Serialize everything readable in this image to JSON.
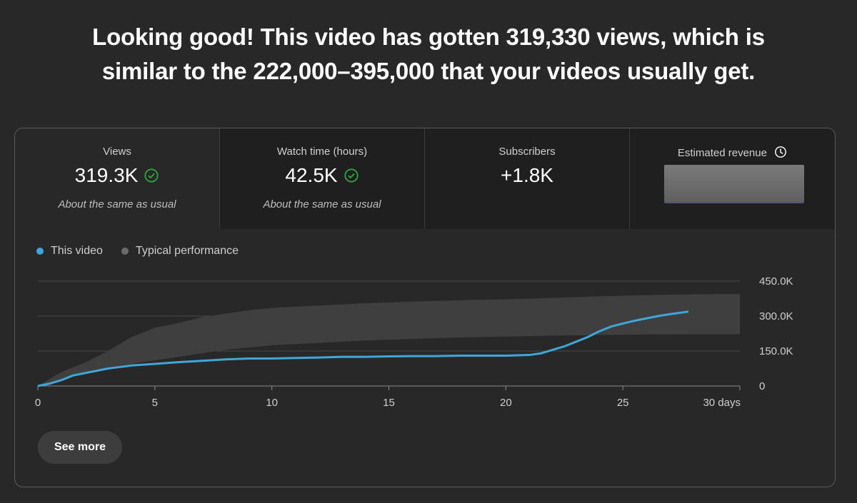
{
  "headline": {
    "line1": "Looking good! This video has gotten 319,330 views, which is",
    "line2": "similar to the 222,000–395,000 that your videos usually get."
  },
  "metrics": [
    {
      "title": "Views",
      "value": "319.3K",
      "note": "About the same as usual",
      "icon": "check-circle-icon"
    },
    {
      "title": "Watch time (hours)",
      "value": "42.5K",
      "note": "About the same as usual",
      "icon": "check-circle-icon"
    },
    {
      "title": "Subscribers",
      "value": "+1.8K",
      "note": ""
    },
    {
      "title": "Estimated revenue",
      "value": "",
      "icon": "clock-icon",
      "value_hidden": true
    }
  ],
  "legend": [
    {
      "label": "This video",
      "color": "#3ea6d8"
    },
    {
      "label": "Typical performance",
      "color": "#6b6b6b"
    }
  ],
  "chart_data": {
    "type": "line",
    "xlabel": "30 days",
    "x_ticks": [
      "0",
      "5",
      "10",
      "15",
      "20",
      "25",
      "30 days"
    ],
    "xlim": [
      0,
      30
    ],
    "y_ticks": [
      "0",
      "150.0K",
      "300.0K",
      "450.0K"
    ],
    "ylim": [
      0,
      450000
    ],
    "grid": true,
    "series": [
      {
        "name": "This video",
        "color": "#3ea6d8",
        "x": [
          0,
          0.5,
          1,
          1.5,
          2,
          3,
          4,
          5,
          6,
          7,
          8,
          9,
          10,
          11,
          12,
          13,
          14,
          15,
          16,
          17,
          18,
          19,
          20,
          21,
          21.5,
          22,
          22.5,
          23,
          23.5,
          24,
          24.5,
          25,
          25.5,
          26,
          26.5,
          27,
          27.5,
          27.8
        ],
        "y": [
          0,
          10000,
          25000,
          45000,
          55000,
          75000,
          88000,
          95000,
          102000,
          108000,
          114000,
          118000,
          118000,
          120000,
          122000,
          125000,
          125000,
          127000,
          128000,
          128000,
          130000,
          130000,
          130000,
          133000,
          140000,
          155000,
          170000,
          190000,
          210000,
          235000,
          255000,
          268000,
          280000,
          290000,
          300000,
          308000,
          315000,
          319330
        ]
      },
      {
        "name": "Typical performance",
        "color": "#3f3f3f",
        "x": [
          0,
          1,
          2,
          3,
          4,
          5,
          6,
          7,
          8,
          9,
          10,
          12,
          14,
          16,
          18,
          20,
          22,
          24,
          26,
          28,
          30
        ],
        "upper": [
          0,
          60000,
          100000,
          150000,
          210000,
          250000,
          270000,
          295000,
          310000,
          325000,
          335000,
          345000,
          355000,
          362000,
          368000,
          372000,
          378000,
          385000,
          390000,
          393000,
          395000
        ],
        "lower": [
          0,
          30000,
          55000,
          80000,
          95000,
          110000,
          125000,
          140000,
          155000,
          165000,
          175000,
          185000,
          195000,
          202000,
          208000,
          212000,
          216000,
          219000,
          221000,
          222000,
          222000
        ]
      }
    ]
  },
  "see_more_label": "See more"
}
